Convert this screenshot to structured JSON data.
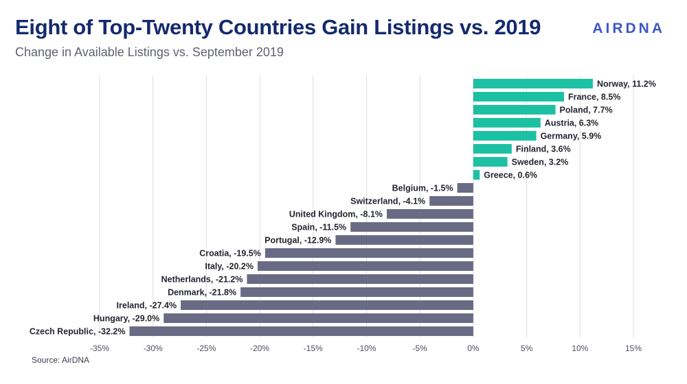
{
  "header": {
    "title": "Eight of Top-Twenty Countries Gain Listings vs. 2019",
    "subtitle": "Change in Available Listings vs. September 2019",
    "logo_text": "AIRDNA"
  },
  "footer": {
    "source": "Source: AirDNA"
  },
  "colors": {
    "positive": "#1cc1a3",
    "negative": "#696b85",
    "grid": "#dcdcdc",
    "title": "#142a6e",
    "logo": "#3c57c9"
  },
  "chart_data": {
    "type": "bar",
    "orientation": "horizontal",
    "title": "Eight of Top-Twenty Countries Gain Listings vs. 2019",
    "subtitle": "Change in Available Listings vs. September 2019",
    "xlim": [
      -35,
      15
    ],
    "xticks": [
      -35,
      -30,
      -25,
      -20,
      -15,
      -10,
      -5,
      0,
      5,
      10,
      15
    ],
    "xtick_labels": [
      "-35%",
      "-30%",
      "-25%",
      "-20%",
      "-15%",
      "-10%",
      "-5%",
      "0%",
      "5%",
      "10%",
      "15%"
    ],
    "grid": "vertical",
    "categories": [
      "Norway",
      "France",
      "Poland",
      "Austria",
      "Germany",
      "Finland",
      "Sweden",
      "Greece",
      "Belgium",
      "Switzerland",
      "United Kingdom",
      "Spain",
      "Portugal",
      "Croatia",
      "Italy",
      "Netherlands",
      "Denmark",
      "Ireland",
      "Hungary",
      "Czech Republic"
    ],
    "values": [
      11.2,
      8.5,
      7.7,
      6.3,
      5.9,
      3.6,
      3.2,
      0.6,
      -1.5,
      -4.1,
      -8.1,
      -11.5,
      -12.9,
      -19.5,
      -20.2,
      -21.2,
      -21.8,
      -27.4,
      -29.0,
      -32.2
    ],
    "data_labels": [
      "Norway, 11.2%",
      "France, 8.5%",
      "Poland, 7.7%",
      "Austria, 6.3%",
      "Germany, 5.9%",
      "Finland, 3.6%",
      "Sweden, 3.2%",
      "Greece, 0.6%",
      "Belgium, -1.5%",
      "Switzerland, -4.1%",
      "United Kingdom, -8.1%",
      "Spain, -11.5%",
      "Portugal, -12.9%",
      "Croatia, -19.5%",
      "Italy, -20.2%",
      "Netherlands, -21.2%",
      "Denmark, -21.8%",
      "Ireland, -27.4%",
      "Hungary, -29.0%",
      "Czech Republic, -32.2%"
    ]
  }
}
